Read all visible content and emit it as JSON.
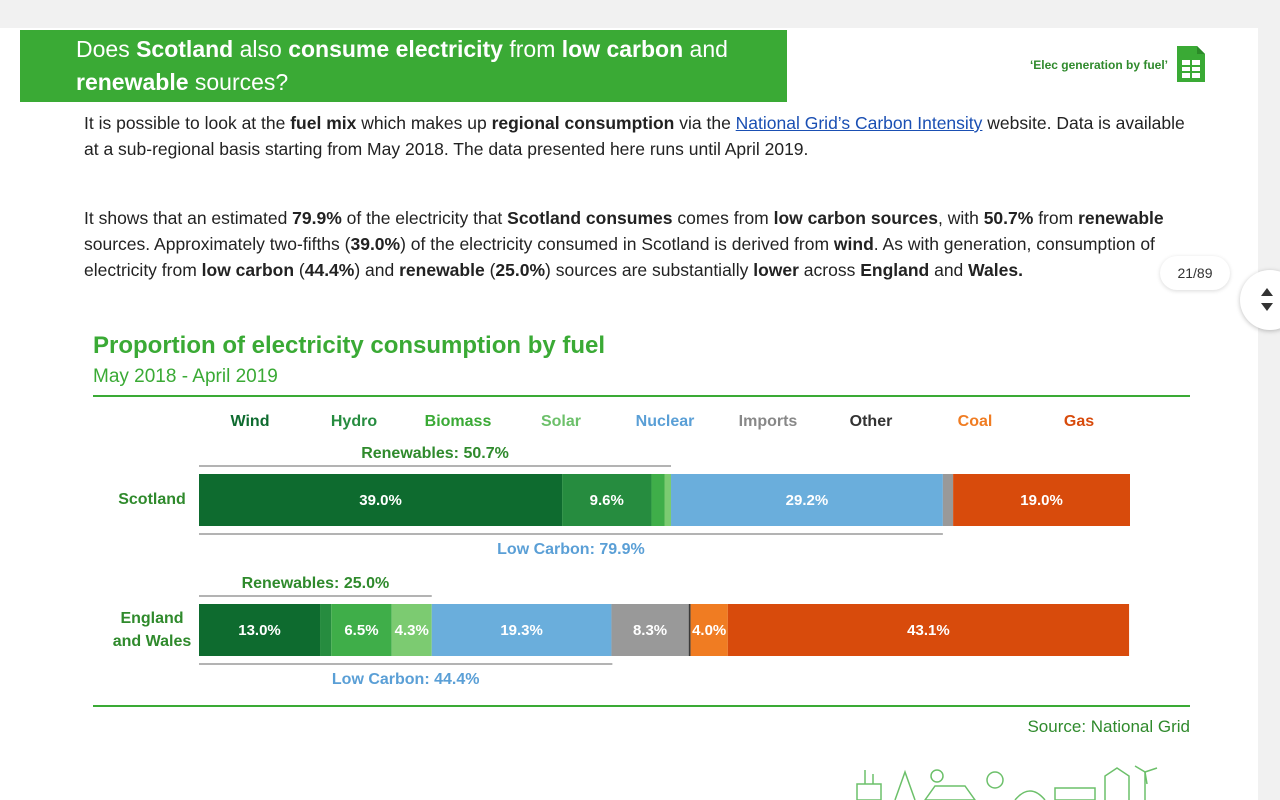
{
  "header": {
    "title_parts": [
      {
        "text": "Does ",
        "bold": false
      },
      {
        "text": "Scotland",
        "bold": true
      },
      {
        "text": " also ",
        "bold": false
      },
      {
        "text": "consume electricity",
        "bold": true
      },
      {
        "text": " from ",
        "bold": false
      },
      {
        "text": "low carbon",
        "bold": true
      },
      {
        "text": " and ",
        "bold": false
      },
      {
        "text": "renewable",
        "bold": true
      },
      {
        "text": " sources?",
        "bold": false
      }
    ],
    "link_label": "‘Elec generation by fuel’",
    "link_icon": "spreadsheet-icon"
  },
  "paragraph1": [
    {
      "text": "It is possible to look at the ",
      "style": "normal"
    },
    {
      "text": "fuel mix",
      "style": "bold"
    },
    {
      "text": " which makes up ",
      "style": "normal"
    },
    {
      "text": "regional consumption",
      "style": "bold"
    },
    {
      "text": " via the ",
      "style": "normal"
    },
    {
      "text": "National Grid’s Carbon Intensity",
      "style": "link"
    },
    {
      "text": " website.  Data is available at a sub-regional basis starting from May 2018.  The data presented here runs until April 2019.",
      "style": "normal"
    }
  ],
  "paragraph2": [
    {
      "text": "It shows that an estimated ",
      "style": "normal"
    },
    {
      "text": "79.9%",
      "style": "bold"
    },
    {
      "text": " of the electricity that ",
      "style": "normal"
    },
    {
      "text": "Scotland consumes",
      "style": "bold"
    },
    {
      "text": " comes from ",
      "style": "normal"
    },
    {
      "text": "low carbon sources",
      "style": "bold"
    },
    {
      "text": ", with ",
      "style": "normal"
    },
    {
      "text": "50.7%",
      "style": "bold"
    },
    {
      "text": " from ",
      "style": "normal"
    },
    {
      "text": "renewable",
      "style": "bold"
    },
    {
      "text": " sources.  Approximately two-fifths (",
      "style": "normal"
    },
    {
      "text": "39.0%",
      "style": "bold"
    },
    {
      "text": ") of the electricity consumed in Scotland is derived from ",
      "style": "normal"
    },
    {
      "text": "wind",
      "style": "bold"
    },
    {
      "text": ". As with generation, consumption of electricity from ",
      "style": "normal"
    },
    {
      "text": "low carbon",
      "style": "bold"
    },
    {
      "text": " (",
      "style": "normal"
    },
    {
      "text": "44.4%",
      "style": "bold"
    },
    {
      "text": ") and ",
      "style": "normal"
    },
    {
      "text": "renewable",
      "style": "bold"
    },
    {
      "text": " (",
      "style": "normal"
    },
    {
      "text": "25.0%",
      "style": "bold"
    },
    {
      "text": ") sources are substantially ",
      "style": "normal"
    },
    {
      "text": "lower",
      "style": "bold"
    },
    {
      "text": " across ",
      "style": "normal"
    },
    {
      "text": "England",
      "style": "bold"
    },
    {
      "text": " and ",
      "style": "normal"
    },
    {
      "text": "Wales.",
      "style": "bold"
    }
  ],
  "viewer": {
    "page_counter": "21/89"
  },
  "chart": {
    "title": "Proportion of electricity consumption by fuel",
    "subtitle": "May 2018 - April 2019",
    "source": "Source: National Grid"
  },
  "chart_data": {
    "type": "bar",
    "orientation": "horizontal",
    "stacked": true,
    "title": "Proportion of electricity consumption by fuel",
    "subtitle": "May 2018 - April 2019",
    "categories": [
      "Scotland",
      "England and Wales"
    ],
    "category_lines": [
      [
        "Scotland"
      ],
      [
        "England",
        "and Wales"
      ]
    ],
    "xlim": [
      0,
      100
    ],
    "legend_placement": "top",
    "series": [
      {
        "name": "Wind",
        "color": "#0e6b2f",
        "values": [
          39.0,
          13.0
        ],
        "labels": [
          "39.0%",
          "13.0%"
        ]
      },
      {
        "name": "Hydro",
        "color": "#268c3f",
        "values": [
          9.6,
          1.2
        ],
        "labels": [
          "9.6%",
          ""
        ]
      },
      {
        "name": "Biomass",
        "color": "#3fae49",
        "values": [
          1.4,
          6.5
        ],
        "labels": [
          "",
          "6.5%"
        ]
      },
      {
        "name": "Solar",
        "color": "#7ccb71",
        "values": [
          0.7,
          4.3
        ],
        "labels": [
          "",
          "4.3%"
        ]
      },
      {
        "name": "Nuclear",
        "color": "#6aaedc",
        "values": [
          29.2,
          19.3
        ],
        "labels": [
          "29.2%",
          "19.3%"
        ]
      },
      {
        "name": "Imports",
        "color": "#999999",
        "values": [
          1.1,
          8.3
        ],
        "labels": [
          "",
          "8.3%"
        ]
      },
      {
        "name": "Other",
        "color": "#3a3a3a",
        "values": [
          0.0,
          0.2
        ],
        "labels": [
          "",
          ""
        ]
      },
      {
        "name": "Coal",
        "color": "#f07c22",
        "values": [
          0.0,
          4.0
        ],
        "labels": [
          "",
          "4.0%"
        ]
      },
      {
        "name": "Gas",
        "color": "#d84b0c",
        "values": [
          19.0,
          43.1
        ],
        "labels": [
          "19.0%",
          "43.1%"
        ]
      }
    ],
    "brackets": [
      {
        "category": "Scotland",
        "position": "above",
        "label": "Renewables: 50.7%",
        "value": 50.7,
        "color": "#2f8a2c"
      },
      {
        "category": "Scotland",
        "position": "below",
        "label": "Low Carbon: 79.9%",
        "value": 79.9,
        "color": "#5a9fd6"
      },
      {
        "category": "England and Wales",
        "position": "above",
        "label": "Renewables: 25.0%",
        "value": 25.0,
        "color": "#2f8a2c"
      },
      {
        "category": "England and Wales",
        "position": "below",
        "label": "Low Carbon: 44.4%",
        "value": 44.4,
        "color": "#5a9fd6"
      }
    ],
    "legend_label_colors": {
      "Wind": "#0e6b2f",
      "Hydro": "#268c3f",
      "Biomass": "#3aaa35",
      "Solar": "#6cc06a",
      "Nuclear": "#5a9fd6",
      "Imports": "#888888",
      "Other": "#333333",
      "Coal": "#f07c22",
      "Gas": "#d84b0c"
    }
  }
}
